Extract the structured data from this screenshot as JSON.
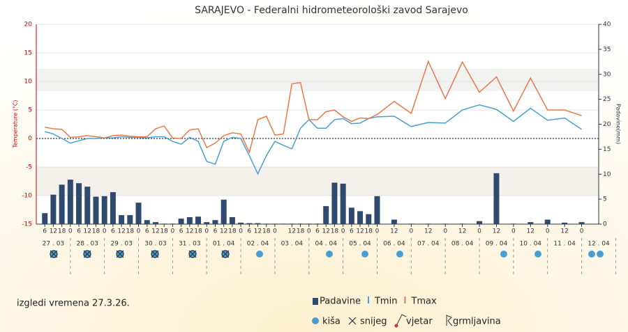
{
  "chart_data": {
    "type": "combo",
    "title": "SARAJEVO - Federalni hidrometeorološki zavod Sarajevo",
    "ylabel": "Temperature (°C)",
    "y2label": "Padavine(mm)",
    "footnote": "izgledi vremena 27.3.26.",
    "symbol_legend": [
      "kiša",
      "snijeg",
      "vjetar",
      "grmljavina"
    ],
    "xlim": [
      0,
      396
    ],
    "ylim": [
      -15,
      20
    ],
    "yticks": [
      -15,
      -10,
      -5,
      0,
      5,
      10,
      15,
      20
    ],
    "y2lim": [
      0,
      40
    ],
    "y2ticks": [
      0,
      5,
      10,
      15,
      20,
      25,
      30,
      35,
      40
    ],
    "x": [
      6,
      12,
      18,
      24,
      30,
      36,
      42,
      48,
      54,
      60,
      66,
      72,
      78,
      84,
      90,
      96,
      102,
      108,
      114,
      120,
      126,
      132,
      138,
      144,
      150,
      156,
      162,
      168,
      174,
      180,
      186,
      192,
      198,
      204,
      210,
      216,
      222,
      228,
      234,
      240,
      252,
      264,
      276,
      288,
      300,
      312,
      324,
      336,
      348,
      360,
      372,
      384
    ],
    "xticks": [
      {
        "value": 6,
        "label": "6"
      },
      {
        "value": 12,
        "label": "12"
      },
      {
        "value": 18,
        "label": "18"
      },
      {
        "value": 24,
        "label": "0"
      },
      {
        "value": 30,
        "label": "6"
      },
      {
        "value": 36,
        "label": "12"
      },
      {
        "value": 42,
        "label": "18"
      },
      {
        "value": 48,
        "label": "0"
      },
      {
        "value": 54,
        "label": "6"
      },
      {
        "value": 60,
        "label": "12"
      },
      {
        "value": 66,
        "label": "18"
      },
      {
        "value": 72,
        "label": "0"
      },
      {
        "value": 78,
        "label": "6"
      },
      {
        "value": 84,
        "label": "12"
      },
      {
        "value": 90,
        "label": "18"
      },
      {
        "value": 96,
        "label": "0"
      },
      {
        "value": 102,
        "label": "6"
      },
      {
        "value": 108,
        "label": "12"
      },
      {
        "value": 114,
        "label": "18"
      },
      {
        "value": 120,
        "label": "0"
      },
      {
        "value": 126,
        "label": "6"
      },
      {
        "value": 132,
        "label": "12"
      },
      {
        "value": 138,
        "label": "18"
      },
      {
        "value": 144,
        "label": "0"
      },
      {
        "value": 150,
        "label": "6"
      },
      {
        "value": 156,
        "label": "12"
      },
      {
        "value": 162,
        "label": "18"
      },
      {
        "value": 168,
        "label": "0"
      },
      {
        "value": 180,
        "label": "12"
      },
      {
        "value": 186,
        "label": "18"
      },
      {
        "value": 192,
        "label": "0"
      },
      {
        "value": 198,
        "label": "6"
      },
      {
        "value": 204,
        "label": "12"
      },
      {
        "value": 210,
        "label": "18"
      },
      {
        "value": 216,
        "label": "0"
      },
      {
        "value": 222,
        "label": "6"
      },
      {
        "value": 228,
        "label": "12"
      },
      {
        "value": 234,
        "label": "18"
      },
      {
        "value": 240,
        "label": "0"
      },
      {
        "value": 252,
        "label": "12"
      },
      {
        "value": 264,
        "label": "0"
      },
      {
        "value": 276,
        "label": "12"
      },
      {
        "value": 288,
        "label": "0"
      },
      {
        "value": 300,
        "label": "12"
      },
      {
        "value": 312,
        "label": "0"
      },
      {
        "value": 324,
        "label": "12"
      },
      {
        "value": 336,
        "label": "0"
      },
      {
        "value": 348,
        "label": "12"
      },
      {
        "value": 360,
        "label": "0"
      },
      {
        "value": 372,
        "label": "12"
      },
      {
        "value": 384,
        "label": "0"
      }
    ],
    "day_labels": [
      {
        "value": 12,
        "label": "27 . 03"
      },
      {
        "value": 36,
        "label": "28 . 03"
      },
      {
        "value": 60,
        "label": "29 . 03"
      },
      {
        "value": 84,
        "label": "30 . 03"
      },
      {
        "value": 108,
        "label": "31 . 03"
      },
      {
        "value": 132,
        "label": "01 . 04"
      },
      {
        "value": 156,
        "label": "02 . 04"
      },
      {
        "value": 180,
        "label": "03 . 04"
      },
      {
        "value": 204,
        "label": "04 . 04"
      },
      {
        "value": 228,
        "label": "05 . 04"
      },
      {
        "value": 252,
        "label": "06 . 04"
      },
      {
        "value": 276,
        "label": "07 . 04"
      },
      {
        "value": 300,
        "label": "08 . 04"
      },
      {
        "value": 324,
        "label": "09 . 04"
      },
      {
        "value": 348,
        "label": "10 . 04"
      },
      {
        "value": 372,
        "label": "11 . 04"
      },
      {
        "value": 396,
        "label": "12 . 04"
      }
    ],
    "series": [
      {
        "name": "Padavine",
        "kind": "bar",
        "axis": "y2",
        "color": "#2f4a6d",
        "values": [
          2.2,
          5.9,
          7.9,
          8.9,
          8.2,
          7.5,
          5.5,
          5.6,
          6.4,
          1.8,
          1.8,
          4.3,
          0.8,
          0.4,
          0.1,
          0.1,
          1.1,
          1.4,
          1.5,
          0.4,
          0.8,
          4.9,
          1.4,
          0.3,
          0.2,
          0.2,
          0.1,
          0.1,
          0.1,
          0.1,
          0.1,
          0.1,
          0.1,
          3.6,
          8.3,
          8.1,
          3.3,
          2.6,
          2.0,
          5.6,
          0.9,
          0.1,
          0.1,
          0.1,
          0.1,
          0.6,
          10.2,
          0.1,
          0.4,
          0.9,
          0.3,
          0.4
        ]
      },
      {
        "name": "Tmin",
        "kind": "line",
        "color": "#4a9fd0",
        "values": [
          1.2,
          0.8,
          0.0,
          -0.8,
          -0.4,
          0.0,
          0.0,
          0.1,
          0.1,
          0.3,
          0.2,
          0.2,
          0.1,
          0.3,
          0.3,
          -0.5,
          -1.0,
          0.2,
          -0.5,
          -4.0,
          -4.5,
          -0.5,
          0.2,
          0.0,
          -3.0,
          -6.2,
          -3.0,
          -0.5,
          -1.2,
          -1.8,
          1.8,
          3.3,
          1.8,
          1.8,
          3.3,
          3.5,
          2.6,
          2.7,
          3.5,
          3.8,
          3.9,
          2.1,
          2.8,
          2.7,
          5.0,
          5.9,
          5.1,
          3.0,
          5.3,
          3.2,
          3.6,
          1.6
        ]
      },
      {
        "name": "Tmax",
        "kind": "line",
        "color": "#e8784a",
        "values": [
          2.0,
          1.7,
          1.6,
          0.2,
          0.3,
          0.5,
          0.3,
          0.1,
          0.5,
          0.6,
          0.4,
          0.3,
          0.3,
          1.7,
          2.2,
          0.1,
          0.0,
          1.5,
          1.7,
          -1.6,
          -0.8,
          0.5,
          1.0,
          0.8,
          -2.4,
          3.3,
          3.9,
          0.6,
          0.8,
          9.6,
          9.8,
          3.3,
          3.3,
          4.7,
          5.0,
          3.8,
          3.0,
          3.6,
          3.5,
          4.2,
          6.5,
          4.4,
          13.5,
          7.0,
          13.4,
          8.1,
          10.8,
          4.8,
          10.6,
          5.0,
          5.0,
          4.0
        ]
      }
    ]
  }
}
